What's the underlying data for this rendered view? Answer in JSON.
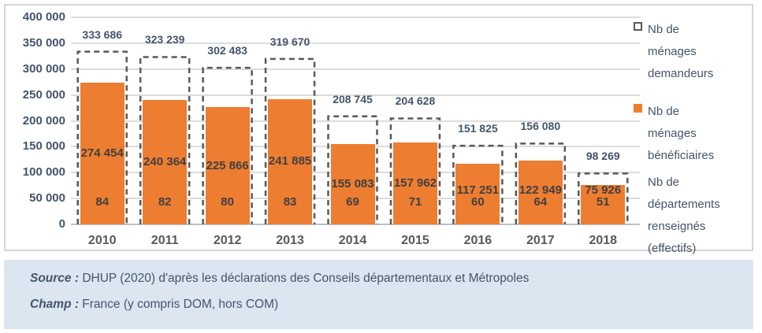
{
  "chart_data": {
    "type": "bar",
    "title": "",
    "categories": [
      "2010",
      "2011",
      "2012",
      "2013",
      "2014",
      "2015",
      "2016",
      "2017",
      "2018"
    ],
    "series": [
      {
        "name": "Nb de ménages demandeurs",
        "style": "dashed-outline",
        "color": "#595959",
        "values": [
          333686,
          323239,
          302483,
          319670,
          208745,
          204628,
          151825,
          156080,
          98269
        ],
        "labels": [
          "333 686",
          "323 239",
          "302 483",
          "319 670",
          "208 745",
          "204 628",
          "151 825",
          "156 080",
          "98 269"
        ]
      },
      {
        "name": "Nb de ménages bénéficiaires",
        "style": "solid",
        "color": "#ed7d31",
        "values": [
          274454,
          240364,
          225866,
          241885,
          155083,
          157962,
          117251,
          122949,
          75926
        ],
        "labels": [
          "274 454",
          "240 364",
          "225 866",
          "241 885",
          "155 083",
          "157 962",
          "117 251",
          "122 949",
          "75 926"
        ]
      },
      {
        "name": "Nb de départements renseignés (effectifs)",
        "style": "text-only",
        "values": [
          84,
          82,
          80,
          83,
          69,
          71,
          60,
          64,
          51
        ],
        "labels": [
          "84",
          "82",
          "80",
          "83",
          "69",
          "71",
          "60",
          "64",
          "51"
        ]
      }
    ],
    "y_axis": {
      "min": 0,
      "max": 400000,
      "tick_values": [
        400000,
        350000,
        300000,
        250000,
        200000,
        150000,
        100000,
        50000,
        0
      ],
      "tick_labels": [
        "400 000",
        "350 000",
        "300 000",
        "250 000",
        "200 000",
        "150 000",
        "100 000",
        "50 000",
        "0"
      ]
    },
    "grid": true,
    "legend_position": "right"
  },
  "legend": {
    "items": [
      {
        "icon": "dashed-square-icon",
        "label": "Nb de\nménages\ndemandeurs"
      },
      {
        "icon": "orange-square-icon",
        "label": "Nb de\nménages\nbénéficiaires"
      },
      {
        "icon": null,
        "label": "Nb de\ndépartements\nrenseignés\n(effectifs)"
      }
    ]
  },
  "footer": {
    "source_prefix": "Source :",
    "source_text": " DHUP (2020) d'après les déclarations des Conseils départementaux et Métropoles",
    "champ_prefix": "Champ :",
    "champ_text": " France (y compris DOM, hors COM)"
  },
  "colors": {
    "bar_orange": "#ed7d31",
    "dashed_gray": "#595959",
    "label_navy": "#44546a",
    "inside_label_gray": "#404040",
    "gridline": "#dcdcdc",
    "footer_bg": "#dce6f1",
    "panel_border": "#d4d4d4"
  }
}
